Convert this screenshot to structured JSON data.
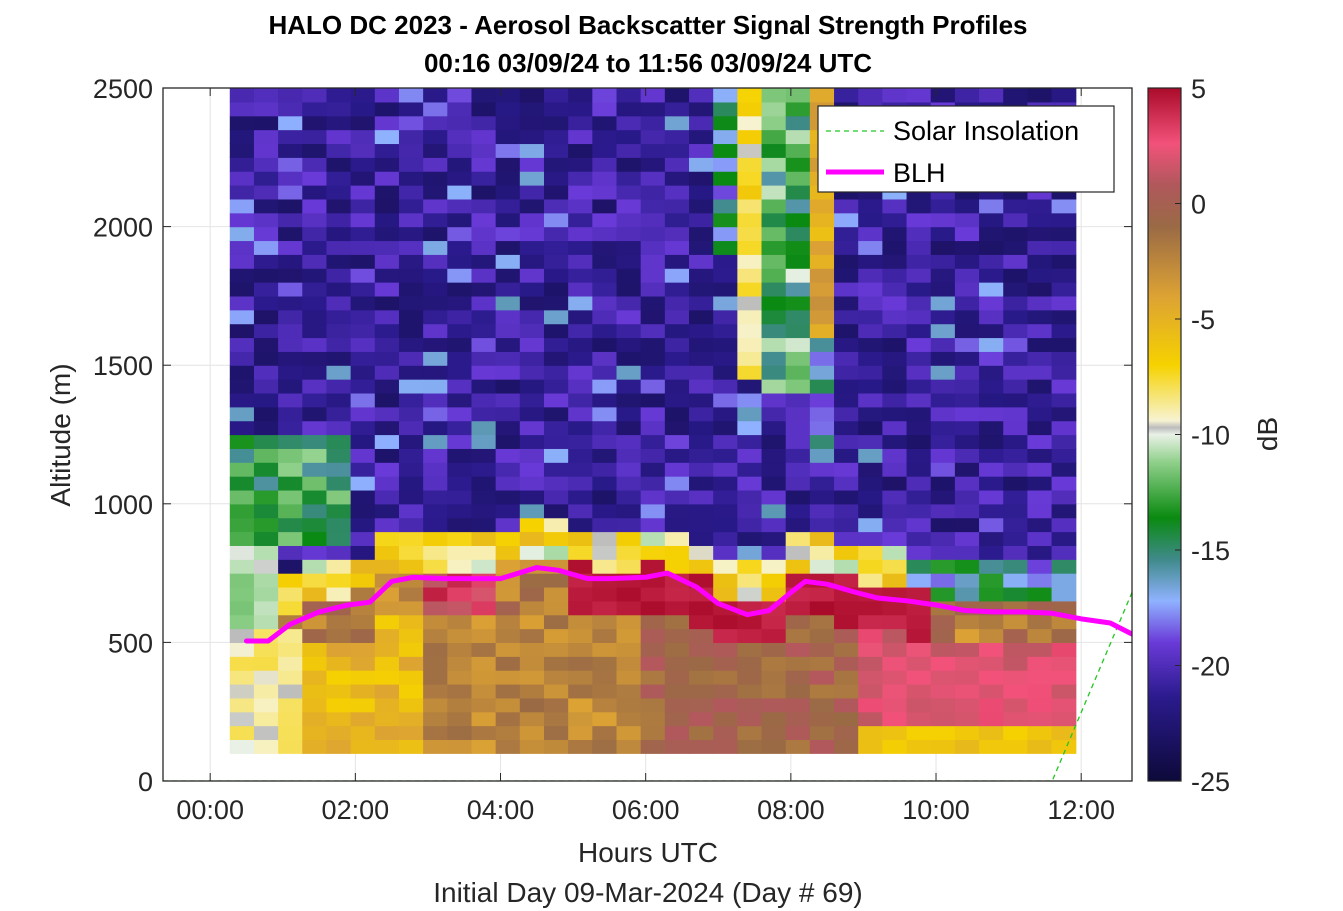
{
  "chart_data": {
    "type": "heatmap",
    "title": "HALO DC 2023 - Aerosol Backscatter Signal Strength Profiles",
    "subtitle": "00:16 03/09/24 to 11:56 03/09/24  UTC",
    "xlabel": "Hours UTC",
    "xlabel2": "Initial Day 09-Mar-2024 (Day # 69)",
    "ylabel": "Altitude (m)",
    "colorbar_label": "dB",
    "xlim": [
      -0.65,
      12.7
    ],
    "ylim": [
      0,
      2500
    ],
    "x_ticks": [
      0,
      2,
      4,
      6,
      8,
      10,
      12
    ],
    "x_tick_labels": [
      "00:00",
      "02:00",
      "04:00",
      "06:00",
      "08:00",
      "10:00",
      "12:00"
    ],
    "y_ticks": [
      0,
      500,
      1000,
      1500,
      2000,
      2500
    ],
    "y_tick_labels": [
      "0",
      "500",
      "1000",
      "1500",
      "2000",
      "2500"
    ],
    "clim": [
      -25,
      5
    ],
    "colorbar_ticks": [
      5,
      0,
      -5,
      -10,
      -15,
      -20,
      -25
    ],
    "colorbar_tick_labels": [
      "5",
      "0",
      "-5",
      "-10",
      "-15",
      "-20",
      "-25"
    ],
    "grid": true,
    "legend_position": "top-right",
    "heatmap": {
      "x_start_hours": 0.27,
      "x_step_hours": 0.333,
      "y_start_m": 100,
      "y_step_m": 50,
      "n_cols": 35,
      "n_rows": 48,
      "description_values": "dB per cell, synthesized from visual bands"
    },
    "series": [
      {
        "name": "Solar Insolation",
        "style": "dashed",
        "color": "#22c622",
        "x": [
          -0.65,
          11.6,
          12.7
        ],
        "y": [
          0,
          0,
          680
        ]
      },
      {
        "name": "BLH",
        "style": "solid",
        "color": "#ff00ff",
        "x": [
          0.5,
          0.8,
          1.1,
          1.5,
          1.9,
          2.2,
          2.5,
          2.8,
          3.2,
          3.6,
          4.0,
          4.5,
          4.8,
          5.2,
          5.5,
          6.0,
          6.3,
          6.7,
          7.0,
          7.4,
          7.7,
          8.0,
          8.2,
          8.5,
          8.9,
          9.2,
          9.6,
          10.0,
          10.4,
          10.8,
          11.2,
          11.6,
          12.0,
          12.4,
          12.7
        ],
        "y": [
          505,
          505,
          565,
          610,
          635,
          645,
          720,
          735,
          730,
          730,
          730,
          770,
          760,
          730,
          730,
          735,
          750,
          700,
          640,
          600,
          615,
          680,
          720,
          710,
          680,
          660,
          650,
          635,
          615,
          610,
          610,
          605,
          585,
          570,
          530
        ]
      }
    ]
  }
}
